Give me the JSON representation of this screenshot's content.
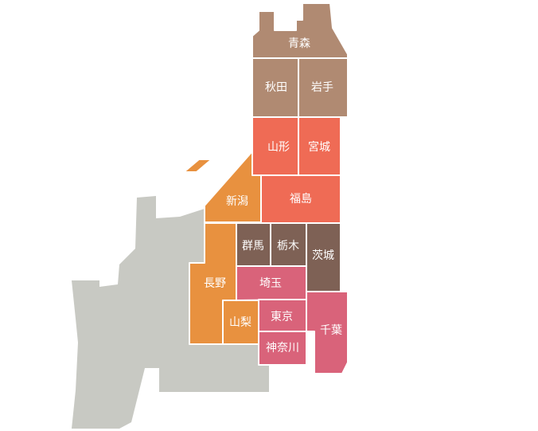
{
  "regions": [
    {
      "label": "青森"
    },
    {
      "label": "秋田"
    },
    {
      "label": "岩手"
    },
    {
      "label": "山形"
    },
    {
      "label": "宮城"
    },
    {
      "label": "新潟"
    },
    {
      "label": "福島"
    },
    {
      "label": "群馬"
    },
    {
      "label": "栃木"
    },
    {
      "label": "茨城"
    },
    {
      "label": "長野"
    },
    {
      "label": "埼玉"
    },
    {
      "label": "山梨"
    },
    {
      "label": "東京"
    },
    {
      "label": "千葉"
    },
    {
      "label": "神奈川"
    }
  ]
}
